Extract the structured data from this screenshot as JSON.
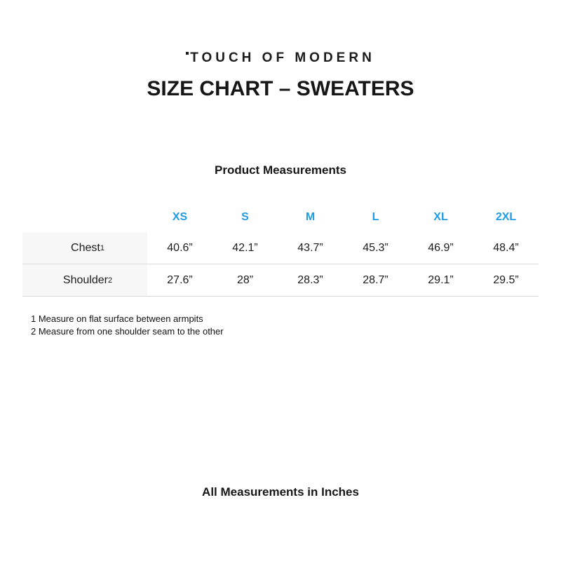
{
  "logo": {
    "text": "TOUCH OF MODERN"
  },
  "title": "SIZE CHART – SWEATERS",
  "subtitle": "Product Measurements",
  "table": {
    "sizes": [
      "XS",
      "S",
      "M",
      "L",
      "XL",
      "2XL"
    ],
    "rows": [
      {
        "label": "Chest",
        "sup": "1",
        "values": [
          "40.6”",
          "42.1”",
          "43.7”",
          "45.3”",
          "46.9”",
          "48.4”"
        ]
      },
      {
        "label": "Shoulder",
        "sup": "2",
        "values": [
          "27.6”",
          "28”",
          "28.3”",
          "28.7”",
          "29.1”",
          "29.5”"
        ]
      }
    ]
  },
  "footnotes": [
    "1 Measure on flat surface between armpits",
    "2 Measure from one shoulder seam to the other"
  ],
  "footer": "All Measurements in Inches",
  "colors": {
    "accent_blue": "#219be4",
    "label_column_bg": "#f7f7f7",
    "table_top_border": "#c7c7c7",
    "row_border": "#dadada",
    "text": "#1b1b1b"
  },
  "chart_data": {
    "type": "table",
    "title": "SIZE CHART – SWEATERS",
    "subtitle": "Product Measurements",
    "columns": [
      "",
      "XS",
      "S",
      "M",
      "L",
      "XL",
      "2XL"
    ],
    "rows": [
      [
        "Chest¹",
        "40.6”",
        "42.1”",
        "43.7”",
        "45.3”",
        "46.9”",
        "48.4”"
      ],
      [
        "Shoulder²",
        "27.6”",
        "28”",
        "28.3”",
        "28.7”",
        "29.1”",
        "29.5”"
      ]
    ],
    "units": "inches",
    "footnotes": [
      "1 Measure on flat surface between armpits",
      "2 Measure from one shoulder seam to the other"
    ]
  }
}
